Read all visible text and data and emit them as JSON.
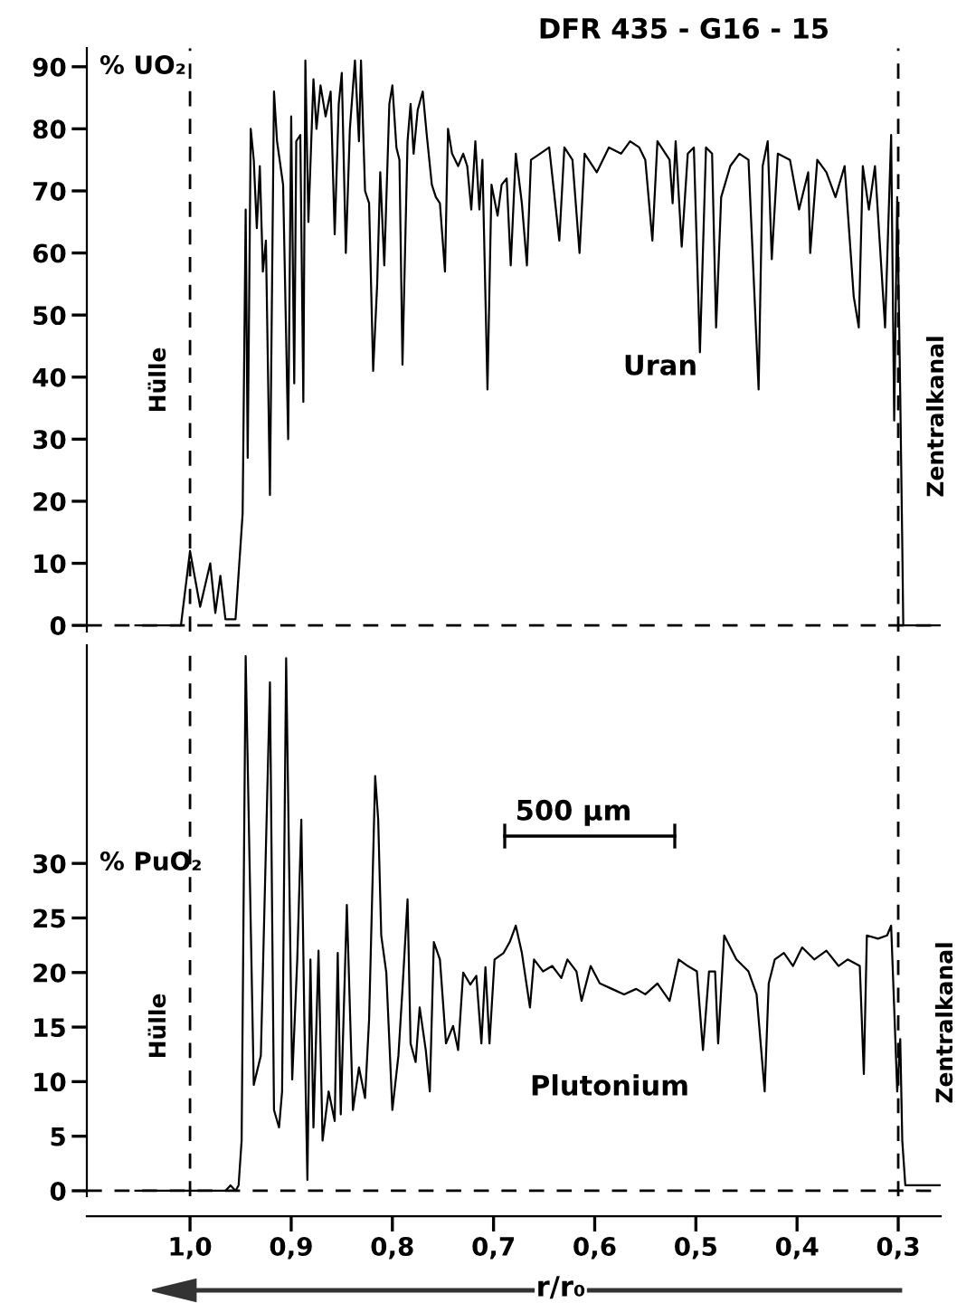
{
  "chart_data": [
    {
      "type": "line",
      "title": "DFR 435 - G16 - 15",
      "ylabel": "% UO₂",
      "x": [
        1.054,
        1.009,
        1.0,
        0.99,
        0.98,
        0.975,
        0.97,
        0.965,
        0.955,
        0.948,
        0.945,
        0.943,
        0.94,
        0.937,
        0.934,
        0.931,
        0.928,
        0.925,
        0.921,
        0.917,
        0.914,
        0.908,
        0.903,
        0.9,
        0.897,
        0.895,
        0.891,
        0.888,
        0.886,
        0.883,
        0.878,
        0.875,
        0.871,
        0.866,
        0.861,
        0.857,
        0.853,
        0.85,
        0.846,
        0.842,
        0.837,
        0.833,
        0.831,
        0.827,
        0.823,
        0.819,
        0.815,
        0.812,
        0.808,
        0.803,
        0.8,
        0.796,
        0.793,
        0.79,
        0.785,
        0.782,
        0.779,
        0.775,
        0.77,
        0.766,
        0.761,
        0.757,
        0.753,
        0.748,
        0.745,
        0.741,
        0.735,
        0.73,
        0.726,
        0.722,
        0.718,
        0.714,
        0.711,
        0.706,
        0.702,
        0.696,
        0.692,
        0.687,
        0.683,
        0.678,
        0.672,
        0.667,
        0.663,
        0.654,
        0.645,
        0.635,
        0.63,
        0.622,
        0.615,
        0.61,
        0.598,
        0.586,
        0.574,
        0.565,
        0.556,
        0.55,
        0.543,
        0.538,
        0.526,
        0.523,
        0.52,
        0.514,
        0.508,
        0.502,
        0.496,
        0.49,
        0.484,
        0.48,
        0.475,
        0.466,
        0.457,
        0.448,
        0.438,
        0.434,
        0.429,
        0.425,
        0.419,
        0.407,
        0.398,
        0.389,
        0.387,
        0.38,
        0.371,
        0.362,
        0.353,
        0.344,
        0.339,
        0.335,
        0.329,
        0.323,
        0.313,
        0.307,
        0.304,
        0.301,
        0.298,
        0.296,
        0.295,
        0.258
      ],
      "values": [
        0,
        0,
        12,
        3,
        10,
        2,
        8,
        1,
        1,
        18,
        67,
        27,
        80,
        75,
        64,
        74,
        57,
        62,
        21,
        86,
        78,
        71,
        30,
        82,
        39,
        78,
        79,
        36,
        91,
        65,
        88,
        80,
        87,
        82,
        86,
        63,
        84,
        89,
        60,
        80,
        91,
        78,
        91,
        70,
        68,
        41,
        55,
        73,
        58,
        84,
        87,
        77,
        75,
        42,
        78,
        84,
        76,
        83,
        86,
        79,
        71,
        69,
        68,
        57,
        80,
        76,
        74,
        76,
        74,
        67,
        78,
        67,
        75,
        38,
        71,
        66,
        71,
        72,
        58,
        76,
        68,
        58,
        75,
        76,
        77,
        62,
        77,
        75,
        60,
        76,
        73,
        77,
        76,
        78,
        77,
        75,
        62,
        78,
        75,
        68,
        78,
        61,
        76,
        77,
        44,
        77,
        76,
        48,
        69,
        74,
        76,
        75,
        38,
        74,
        78,
        59,
        76,
        75,
        67,
        73,
        60,
        75,
        73,
        69,
        74,
        53,
        48,
        74,
        67,
        74,
        48,
        79,
        33,
        69,
        37,
        13,
        0,
        0
      ],
      "color": "#000000",
      "line_style": "solid",
      "tick_labels": "y",
      "xlim": [
        1.102,
        0.258
      ],
      "ylim": [
        -1,
        93
      ],
      "yticks": [
        0,
        10,
        20,
        30,
        40,
        50,
        60,
        70,
        80,
        90
      ],
      "ref_lines": [
        {
          "axis": "x",
          "value": 1.0,
          "line_style": "dashed",
          "color": "#000000"
        },
        {
          "axis": "x",
          "value": 0.3,
          "line_style": "dashed",
          "color": "#000000"
        },
        {
          "axis": "y",
          "value": 0,
          "line_style": "dashed",
          "color": "#000000"
        }
      ],
      "annotations": [
        "Uran",
        "Hülle",
        "Zentralkanal"
      ]
    },
    {
      "type": "line",
      "ylabel": "% PuO₂",
      "xlabel": "r/r₀",
      "x": [
        1.054,
        0.965,
        0.96,
        0.955,
        0.952,
        0.949,
        0.945,
        0.937,
        0.93,
        0.921,
        0.917,
        0.912,
        0.909,
        0.905,
        0.899,
        0.894,
        0.89,
        0.887,
        0.884,
        0.881,
        0.878,
        0.873,
        0.869,
        0.863,
        0.857,
        0.854,
        0.851,
        0.845,
        0.839,
        0.833,
        0.827,
        0.823,
        0.817,
        0.814,
        0.811,
        0.806,
        0.8,
        0.794,
        0.79,
        0.785,
        0.782,
        0.777,
        0.773,
        0.767,
        0.763,
        0.759,
        0.753,
        0.747,
        0.74,
        0.735,
        0.73,
        0.723,
        0.717,
        0.712,
        0.708,
        0.704,
        0.699,
        0.69,
        0.684,
        0.678,
        0.672,
        0.664,
        0.66,
        0.651,
        0.642,
        0.633,
        0.627,
        0.618,
        0.613,
        0.604,
        0.595,
        0.583,
        0.571,
        0.559,
        0.55,
        0.538,
        0.526,
        0.517,
        0.508,
        0.499,
        0.493,
        0.487,
        0.481,
        0.478,
        0.472,
        0.46,
        0.448,
        0.44,
        0.432,
        0.428,
        0.422,
        0.413,
        0.404,
        0.395,
        0.383,
        0.371,
        0.359,
        0.35,
        0.338,
        0.334,
        0.331,
        0.32,
        0.311,
        0.307,
        0.304,
        0.301,
        0.298,
        0.296,
        0.293,
        0.258
      ],
      "values": [
        0,
        0,
        0.5,
        0,
        0.5,
        4.6,
        49,
        9.7,
        12.4,
        46.6,
        7.4,
        5.8,
        9.1,
        48.8,
        10.2,
        21.2,
        34,
        15.7,
        1,
        21.2,
        5.8,
        22,
        4.6,
        9.1,
        6.4,
        21.8,
        7,
        26.2,
        7.4,
        11.3,
        8.5,
        15.7,
        38,
        34,
        23.4,
        20,
        7.4,
        12.4,
        18.5,
        26.7,
        13.5,
        11.8,
        16.8,
        12.9,
        9.1,
        22.8,
        21.2,
        13.5,
        15.1,
        12.9,
        20,
        18.9,
        19.7,
        13.5,
        20.5,
        13.5,
        21.2,
        21.8,
        22.8,
        24.3,
        21.8,
        16.8,
        21.2,
        20.1,
        20.6,
        19.5,
        21.2,
        20.1,
        17.4,
        20.6,
        19,
        18.5,
        18,
        18.5,
        18,
        19,
        17.4,
        21.2,
        20.6,
        20.1,
        12.9,
        20.1,
        20.1,
        13.5,
        23.4,
        21.2,
        20.1,
        18,
        9.1,
        19,
        21.2,
        21.8,
        20.6,
        22.3,
        21.2,
        22,
        20.6,
        21.2,
        20.6,
        10.7,
        23.4,
        23.1,
        23.4,
        24.3,
        16.8,
        9.1,
        13.9,
        4.6,
        0.5,
        0.5
      ],
      "color": "#000000",
      "line_style": "solid",
      "xlim": [
        1.102,
        0.258
      ],
      "ylim": [
        -0.5,
        50
      ],
      "yticks": [
        0,
        5,
        10,
        15,
        20,
        25,
        30
      ],
      "xticks": [
        {
          "value": 1.0,
          "label": "1,0"
        },
        {
          "value": 0.9,
          "label": "0,9"
        },
        {
          "value": 0.8,
          "label": "0,8"
        },
        {
          "value": 0.7,
          "label": "0,7"
        },
        {
          "value": 0.6,
          "label": "0,6"
        },
        {
          "value": 0.5,
          "label": "0,5"
        },
        {
          "value": 0.4,
          "label": "0,4"
        },
        {
          "value": 0.3,
          "label": "0,3"
        }
      ],
      "ref_lines": [
        {
          "axis": "x",
          "value": 1.0,
          "line_style": "dashed",
          "color": "#000000"
        },
        {
          "axis": "x",
          "value": 0.3,
          "line_style": "dashed",
          "color": "#000000"
        },
        {
          "axis": "y",
          "value": 0,
          "line_style": "dashed",
          "color": "#000000"
        }
      ],
      "annotations": [
        "500 µm",
        "Plutonium",
        "Hülle",
        "Zentralkanal"
      ]
    }
  ]
}
